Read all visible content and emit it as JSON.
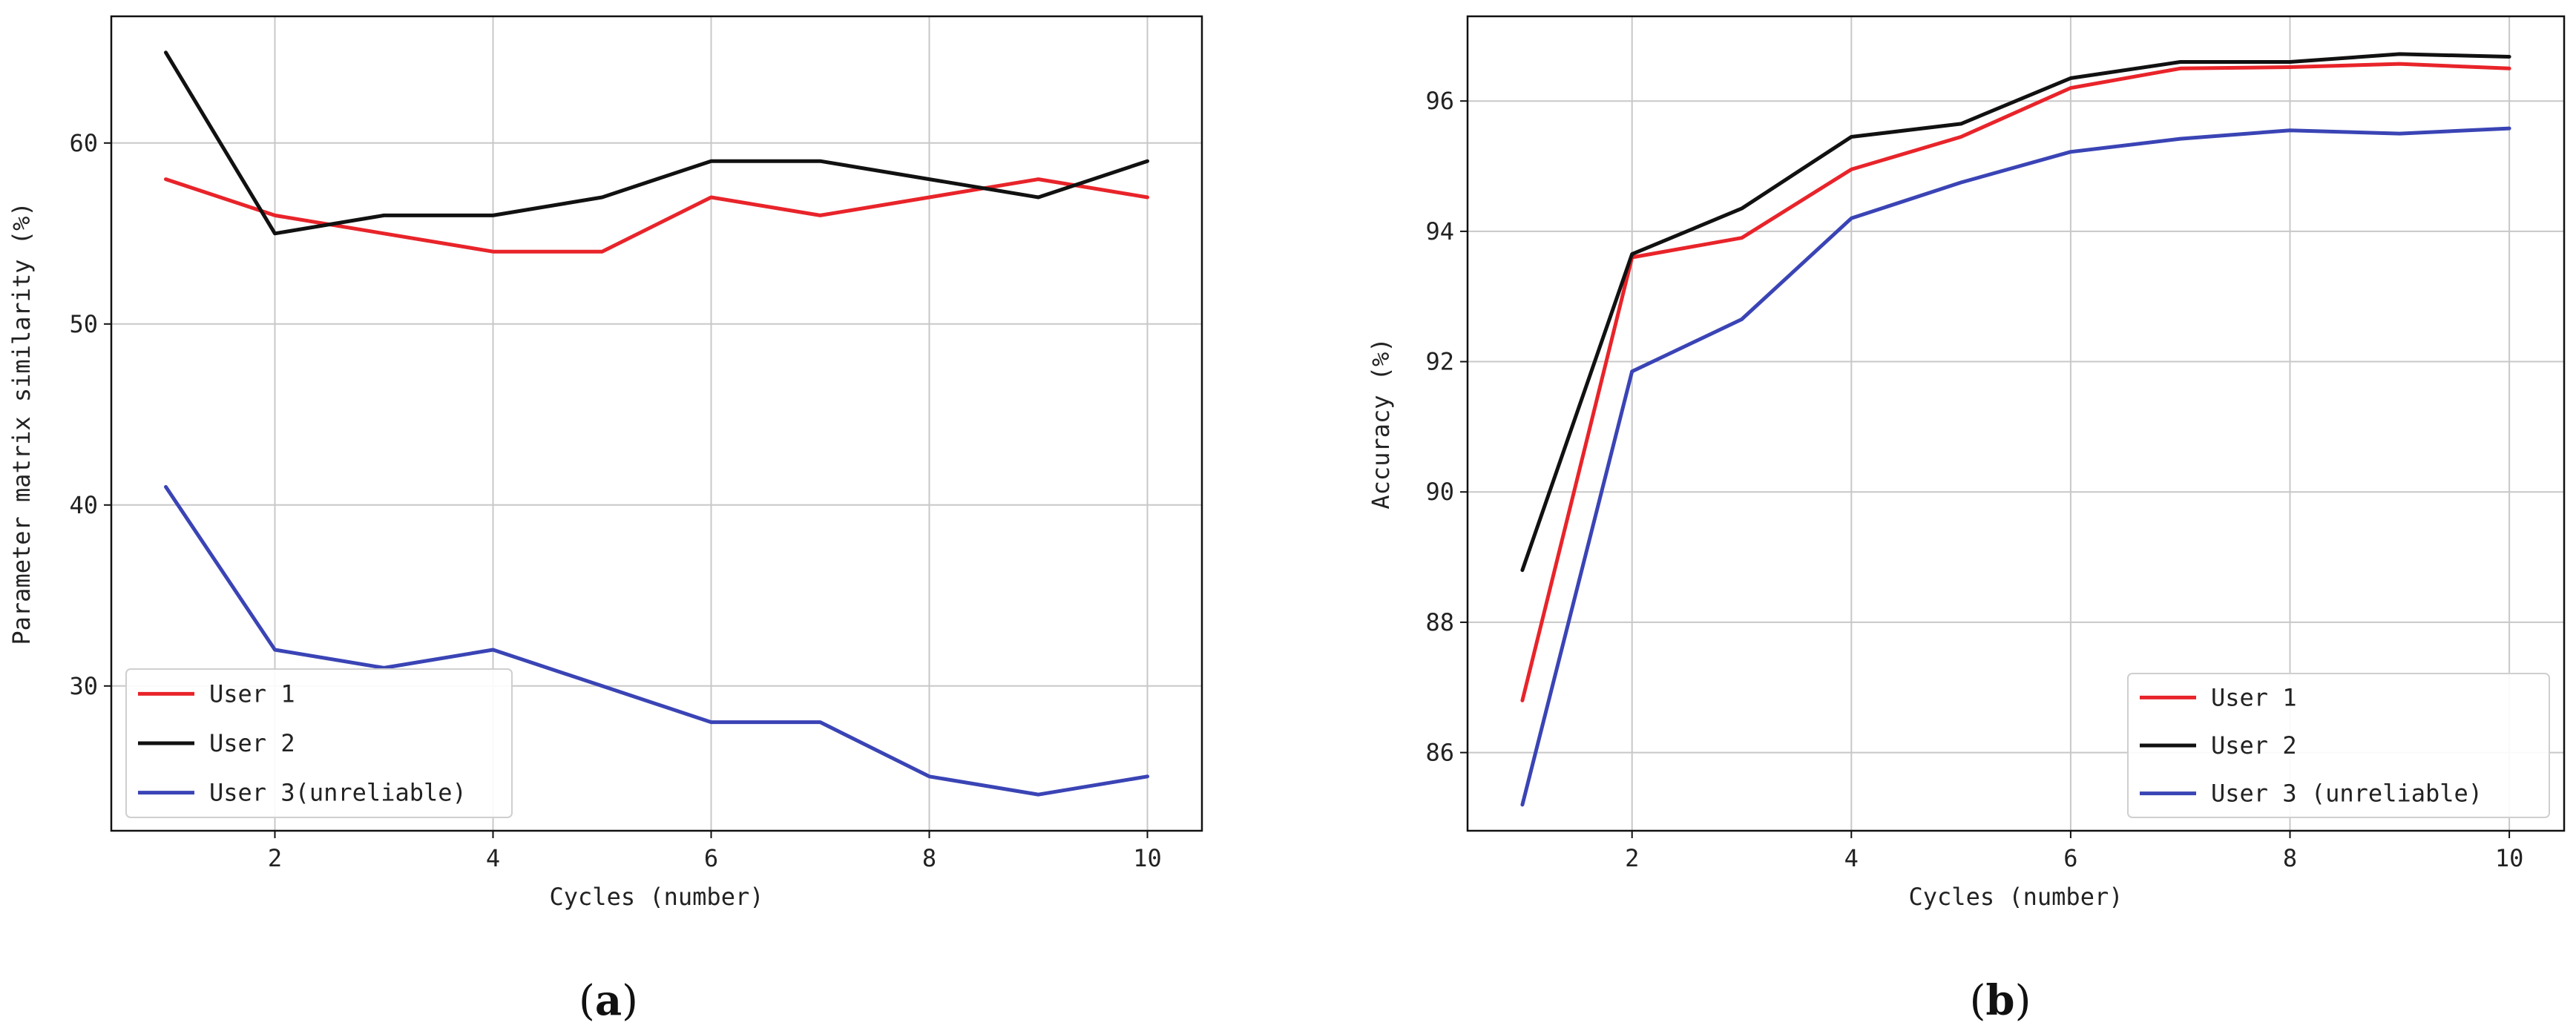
{
  "chart_data": [
    {
      "type": "line",
      "caption_letter": "a",
      "xlabel": "Cycles (number)",
      "ylabel": "Parameter matrix similarity (%)",
      "x": [
        1,
        2,
        3,
        4,
        5,
        6,
        7,
        8,
        9,
        10
      ],
      "xticks": [
        2,
        4,
        6,
        8,
        10
      ],
      "xlim": [
        0.5,
        10.5
      ],
      "yticks": [
        30,
        40,
        50,
        60
      ],
      "ylim": [
        22,
        67
      ],
      "grid": true,
      "legend_position": "lower-left",
      "series": [
        {
          "name": "User 1",
          "color": "#e8242a",
          "values": [
            58,
            56,
            55,
            54,
            54,
            57,
            56,
            57,
            58,
            57
          ]
        },
        {
          "name": "User 2",
          "color": "#111111",
          "values": [
            65,
            55,
            56,
            56,
            57,
            59,
            59,
            58,
            57,
            59
          ]
        },
        {
          "name": "User 3(unreliable)",
          "color": "#3a44b5",
          "values": [
            41,
            32,
            31,
            32,
            30,
            28,
            28,
            25,
            24,
            25
          ]
        }
      ]
    },
    {
      "type": "line",
      "caption_letter": "b",
      "xlabel": "Cycles (number)",
      "ylabel": "Accuracy (%)",
      "x": [
        1,
        2,
        3,
        4,
        5,
        6,
        7,
        8,
        9,
        10
      ],
      "xticks": [
        2,
        4,
        6,
        8,
        10
      ],
      "xlim": [
        0.5,
        10.5
      ],
      "yticks": [
        86,
        88,
        90,
        92,
        94,
        96
      ],
      "ylim": [
        84.8,
        97.3
      ],
      "grid": true,
      "legend_position": "lower-right",
      "series": [
        {
          "name": "User 1",
          "color": "#e8242a",
          "values": [
            86.8,
            93.6,
            93.9,
            94.95,
            95.45,
            96.2,
            96.5,
            96.52,
            96.57,
            96.5
          ]
        },
        {
          "name": "User 2",
          "color": "#111111",
          "values": [
            88.8,
            93.65,
            94.35,
            95.45,
            95.65,
            96.35,
            96.6,
            96.6,
            96.72,
            96.68
          ]
        },
        {
          "name": "User 3 (unreliable)",
          "color": "#3a44b5",
          "values": [
            85.2,
            91.85,
            92.65,
            94.2,
            94.75,
            95.22,
            95.42,
            95.55,
            95.5,
            95.58
          ]
        }
      ]
    }
  ]
}
